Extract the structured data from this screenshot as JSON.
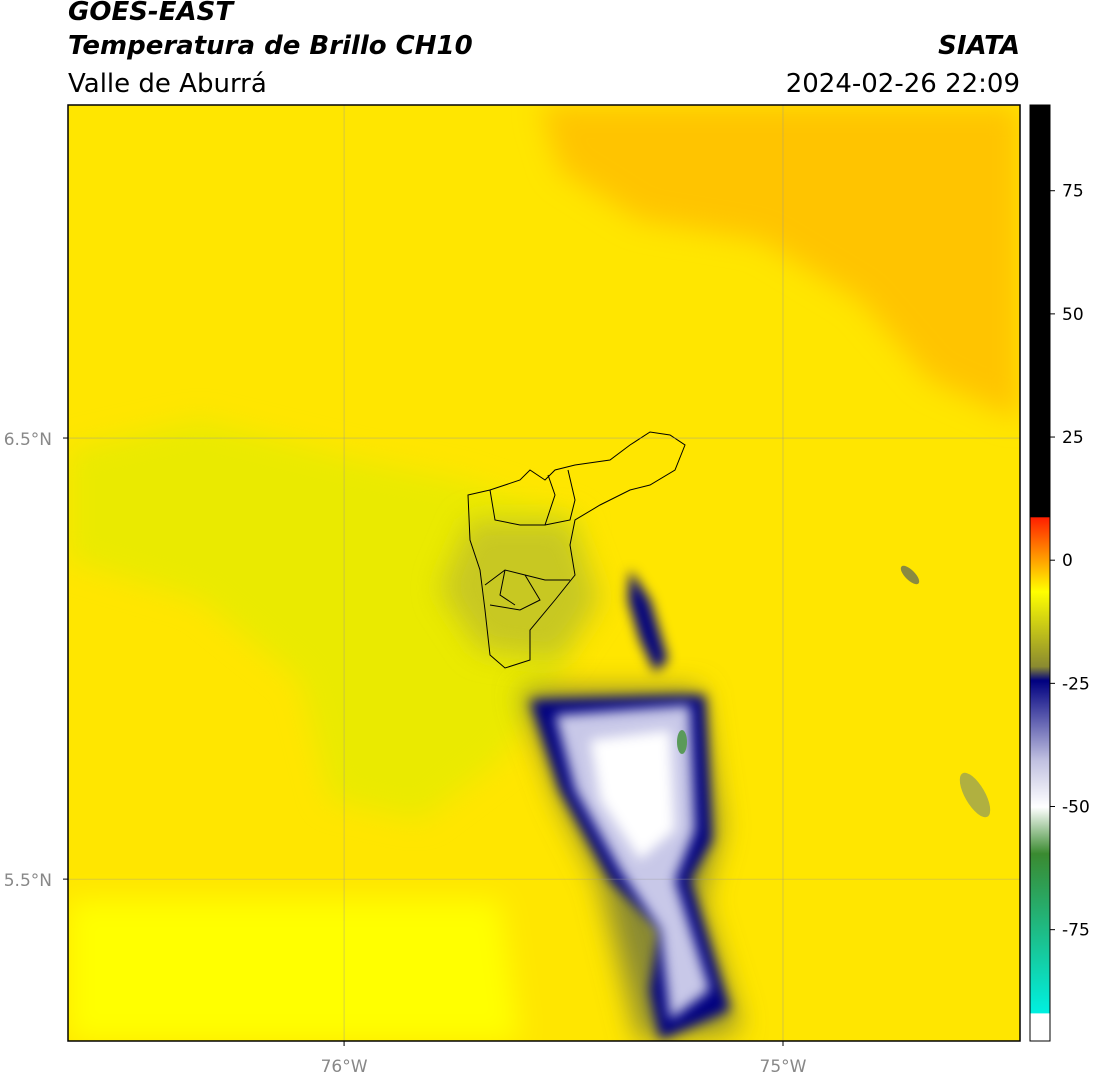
{
  "header": {
    "title": "GOES-EAST",
    "subtitle": "Temperatura de Brillo CH10",
    "region": "Valle de Aburrá",
    "source": "SIATA",
    "datetime": "2024-02-26 22:09"
  },
  "map": {
    "lonlim": [
      -76.629,
      -74.46
    ],
    "latlim": [
      5.133,
      7.255
    ],
    "lon_ticks": [
      {
        "value": -76,
        "label": "76°W"
      },
      {
        "value": -75,
        "label": "75°W"
      }
    ],
    "lat_ticks": [
      {
        "value": 6.5,
        "label": "6.5°N"
      },
      {
        "value": 5.5,
        "label": "5.5°N"
      }
    ]
  },
  "colorbar": {
    "lim": [
      -97.6,
      92.4
    ],
    "ticks": [
      75,
      50,
      25,
      0,
      -25,
      -50,
      -75
    ]
  }
}
